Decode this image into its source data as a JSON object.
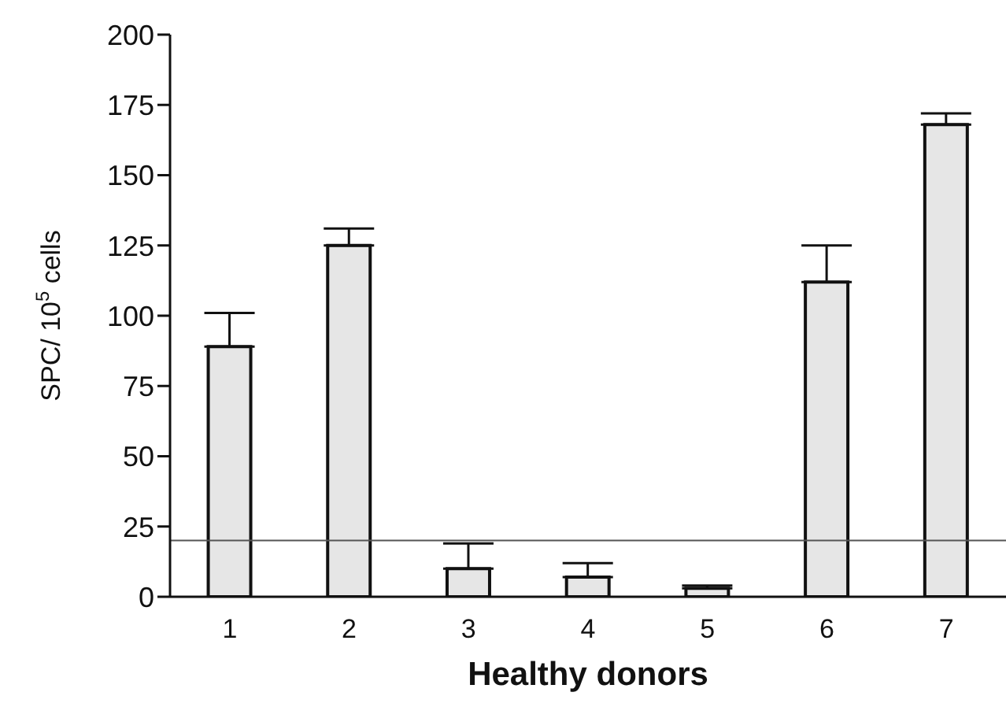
{
  "chart_data": {
    "type": "bar",
    "xlabel": "Healthy donors",
    "ylabel": "SPC/ 10$^{5}$ cells",
    "categories": [
      "1",
      "2",
      "3",
      "4",
      "5",
      "6",
      "7"
    ],
    "values": [
      89,
      125,
      10,
      7,
      3,
      112,
      168
    ],
    "errors": [
      [
        89,
        101
      ],
      [
        125,
        131
      ],
      [
        10,
        19
      ],
      [
        7,
        12
      ],
      [
        3,
        4
      ],
      [
        112,
        125
      ],
      [
        168,
        172
      ]
    ],
    "color": "#e6e6e6",
    "ylim": [
      0,
      200
    ],
    "yticks": [
      0,
      25,
      50,
      75,
      100,
      125,
      150,
      175,
      200
    ],
    "ref_lines": [
      {
        "axis": "y",
        "value": 20,
        "color": "#555555"
      }
    ],
    "grid": false,
    "legend": false
  }
}
